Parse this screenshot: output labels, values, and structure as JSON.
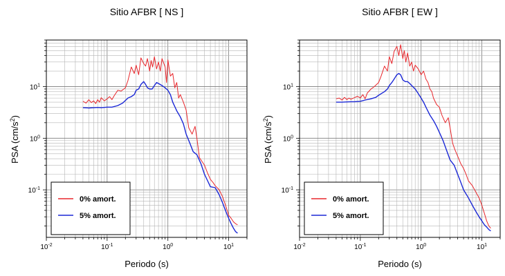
{
  "chart_data": [
    {
      "type": "line",
      "title": "Sitio AFBR [ NS ]",
      "xlabel": "Periodo (s)",
      "ylabel": "PSA (cm/s",
      "ylabel_sup": "2",
      "ylabel_close": ")",
      "xscale": "log",
      "yscale": "log",
      "xlim": [
        0.01,
        20
      ],
      "ylim": [
        0.012,
        80
      ],
      "grid": true,
      "legend_position": "bottom-left",
      "x_ticks": [
        {
          "base": "10",
          "exp": "-2",
          "value": 0.01
        },
        {
          "base": "10",
          "exp": "-1",
          "value": 0.1
        },
        {
          "base": "10",
          "exp": "0",
          "value": 1
        },
        {
          "base": "10",
          "exp": "1",
          "value": 10
        }
      ],
      "y_ticks": [
        {
          "base": "10",
          "exp": "-1",
          "value": 0.1
        },
        {
          "base": "10",
          "exp": "0",
          "value": 1
        },
        {
          "base": "10",
          "exp": "1",
          "value": 10
        }
      ],
      "series": [
        {
          "name": "0% amort.",
          "color": "#e8262b",
          "x": [
            0.04,
            0.045,
            0.05,
            0.055,
            0.06,
            0.065,
            0.07,
            0.075,
            0.08,
            0.09,
            0.1,
            0.11,
            0.12,
            0.13,
            0.15,
            0.17,
            0.2,
            0.22,
            0.25,
            0.28,
            0.3,
            0.33,
            0.36,
            0.4,
            0.43,
            0.46,
            0.5,
            0.53,
            0.56,
            0.6,
            0.65,
            0.7,
            0.75,
            0.8,
            0.9,
            0.95,
            1.0,
            1.1,
            1.2,
            1.3,
            1.4,
            1.5,
            1.6,
            1.8,
            2.0,
            2.2,
            2.5,
            2.8,
            3.0,
            3.3,
            3.6,
            4.0,
            4.5,
            5.0,
            5.5,
            6.0,
            7.0,
            8.0,
            9.0,
            10.0,
            11.0,
            12.0,
            13.0,
            14.0
          ],
          "y": [
            5.2,
            4.8,
            5.6,
            4.9,
            5.3,
            4.7,
            5.6,
            5.0,
            6.1,
            5.3,
            5.8,
            6.4,
            5.6,
            6.6,
            8.5,
            8.2,
            9.5,
            13,
            24,
            18,
            26,
            17,
            36,
            28,
            25,
            35,
            20,
            32,
            24,
            38,
            22,
            30,
            20,
            35,
            24,
            12,
            33,
            16,
            18,
            9.5,
            12,
            6,
            7,
            5,
            3.5,
            1.6,
            1.2,
            1.7,
            1.0,
            0.42,
            0.36,
            0.3,
            0.21,
            0.16,
            0.14,
            0.12,
            0.1,
            0.072,
            0.048,
            0.032,
            0.028,
            0.024,
            0.022,
            0.021
          ]
        },
        {
          "name": "5% amort.",
          "color": "#1a27d6",
          "x": [
            0.04,
            0.05,
            0.06,
            0.07,
            0.08,
            0.1,
            0.12,
            0.15,
            0.18,
            0.2,
            0.22,
            0.25,
            0.28,
            0.3,
            0.33,
            0.36,
            0.4,
            0.43,
            0.46,
            0.5,
            0.55,
            0.6,
            0.65,
            0.7,
            0.8,
            0.9,
            1.0,
            1.1,
            1.2,
            1.4,
            1.6,
            1.8,
            2.0,
            2.3,
            2.6,
            3.0,
            3.5,
            4.0,
            4.5,
            5.0,
            6.0,
            7.0,
            8.0,
            9.0,
            10.0,
            11.0,
            12.0,
            13.0,
            14.0
          ],
          "y": [
            3.9,
            3.85,
            3.9,
            3.95,
            3.9,
            4.0,
            4.0,
            4.3,
            4.8,
            5.4,
            6.0,
            6.4,
            7.0,
            8.5,
            9.0,
            11,
            12.5,
            11,
            9.5,
            9.0,
            9.0,
            10.5,
            12,
            11.5,
            10.5,
            9.5,
            8.5,
            7.0,
            5.0,
            3.4,
            2.6,
            1.9,
            1.2,
            0.8,
            0.55,
            0.48,
            0.32,
            0.2,
            0.15,
            0.115,
            0.11,
            0.08,
            0.055,
            0.038,
            0.028,
            0.022,
            0.018,
            0.0155,
            0.0145
          ]
        }
      ]
    },
    {
      "type": "line",
      "title": "Sitio AFBR [ EW ]",
      "xlabel": "Periodo (s)",
      "ylabel": "PSA (cm/s",
      "ylabel_sup": "2",
      "ylabel_close": ")",
      "xscale": "log",
      "yscale": "log",
      "xlim": [
        0.01,
        20
      ],
      "ylim": [
        0.012,
        80
      ],
      "grid": true,
      "legend_position": "bottom-left",
      "x_ticks": [
        {
          "base": "10",
          "exp": "-2",
          "value": 0.01
        },
        {
          "base": "10",
          "exp": "-1",
          "value": 0.1
        },
        {
          "base": "10",
          "exp": "0",
          "value": 1
        },
        {
          "base": "10",
          "exp": "1",
          "value": 10
        }
      ],
      "y_ticks": [
        {
          "base": "10",
          "exp": "-1",
          "value": 0.1
        },
        {
          "base": "10",
          "exp": "0",
          "value": 1
        },
        {
          "base": "10",
          "exp": "1",
          "value": 10
        }
      ],
      "series": [
        {
          "name": "0% amort.",
          "color": "#e8262b",
          "x": [
            0.04,
            0.045,
            0.05,
            0.055,
            0.06,
            0.065,
            0.07,
            0.08,
            0.09,
            0.1,
            0.11,
            0.12,
            0.13,
            0.15,
            0.17,
            0.2,
            0.22,
            0.25,
            0.28,
            0.3,
            0.33,
            0.36,
            0.4,
            0.43,
            0.46,
            0.5,
            0.53,
            0.56,
            0.6,
            0.65,
            0.7,
            0.75,
            0.8,
            0.9,
            1.0,
            1.1,
            1.2,
            1.3,
            1.4,
            1.5,
            1.6,
            1.8,
            2.0,
            2.2,
            2.5,
            2.8,
            3.0,
            3.3,
            3.6,
            4.0,
            4.5,
            5.0,
            5.5,
            6.0,
            7.0,
            8.0,
            9.0,
            10.0,
            11.0,
            12.0,
            13.0,
            14.0
          ],
          "y": [
            5.8,
            6.0,
            5.5,
            6.2,
            5.6,
            6.0,
            5.7,
            6.1,
            6.5,
            6.0,
            7.0,
            5.8,
            7.5,
            9.0,
            10,
            12,
            16,
            25,
            20,
            38,
            28,
            48,
            60,
            40,
            65,
            35,
            50,
            30,
            45,
            25,
            30,
            20,
            26,
            22,
            17,
            20,
            14,
            12,
            9,
            8,
            6,
            4.5,
            4.0,
            2.8,
            2.0,
            2.5,
            1.6,
            0.8,
            0.6,
            0.45,
            0.32,
            0.26,
            0.2,
            0.15,
            0.12,
            0.09,
            0.07,
            0.05,
            0.035,
            0.025,
            0.02,
            0.018
          ]
        },
        {
          "name": "5% amort.",
          "color": "#1a27d6",
          "x": [
            0.04,
            0.05,
            0.06,
            0.07,
            0.08,
            0.1,
            0.12,
            0.15,
            0.18,
            0.2,
            0.22,
            0.25,
            0.28,
            0.3,
            0.33,
            0.36,
            0.4,
            0.43,
            0.46,
            0.5,
            0.55,
            0.6,
            0.65,
            0.7,
            0.8,
            0.9,
            1.0,
            1.1,
            1.2,
            1.4,
            1.6,
            1.8,
            2.0,
            2.3,
            2.6,
            3.0,
            3.5,
            4.0,
            4.5,
            5.0,
            6.0,
            7.0,
            8.0,
            9.0,
            10.0,
            11.0,
            12.0,
            13.0,
            14.0
          ],
          "y": [
            5.0,
            5.0,
            5.05,
            5.1,
            5.1,
            5.2,
            5.5,
            5.8,
            6.2,
            6.8,
            7.3,
            8.0,
            9.0,
            10.5,
            12,
            14,
            17,
            18,
            17,
            13.5,
            12.5,
            12.5,
            11.5,
            10.5,
            9.0,
            7.3,
            6.0,
            5.0,
            4.0,
            2.8,
            2.2,
            1.7,
            1.3,
            0.9,
            0.6,
            0.38,
            0.3,
            0.2,
            0.14,
            0.1,
            0.07,
            0.05,
            0.038,
            0.03,
            0.025,
            0.021,
            0.019,
            0.017,
            0.016
          ]
        }
      ]
    }
  ]
}
